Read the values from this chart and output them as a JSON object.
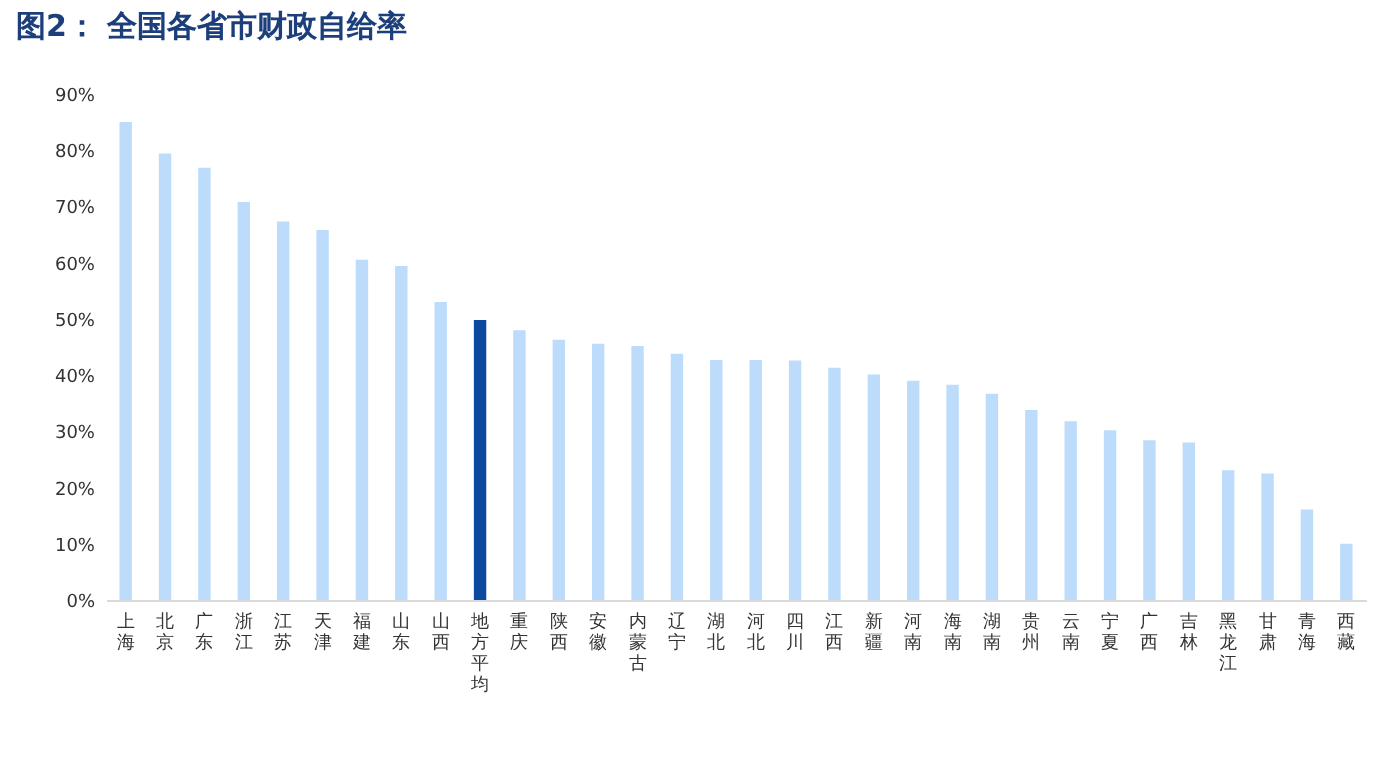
{
  "chart_data": {
    "type": "bar",
    "title": "图2：  全国各省市财政自给率",
    "categories": [
      "上海",
      "北京",
      "广东",
      "浙江",
      "江苏",
      "天津",
      "福建",
      "山东",
      "山西",
      "地方平均",
      "重庆",
      "陕西",
      "安徽",
      "内蒙古",
      "辽宁",
      "湖北",
      "河北",
      "四川",
      "江西",
      "新疆",
      "河南",
      "海南",
      "湖南",
      "贵州",
      "云南",
      "宁夏",
      "广西",
      "吉林",
      "黑龙江",
      "甘肃",
      "青海",
      "西藏"
    ],
    "values": [
      85.0,
      79.4,
      76.9,
      70.8,
      67.3,
      65.8,
      60.5,
      59.4,
      53.0,
      49.8,
      48.0,
      46.3,
      45.6,
      45.2,
      43.8,
      42.7,
      42.7,
      42.6,
      41.3,
      40.1,
      39.0,
      38.3,
      36.7,
      33.8,
      31.8,
      30.2,
      28.4,
      28.0,
      23.1,
      22.5,
      16.1,
      10.0
    ],
    "colors": [
      "#bddcfb",
      "#bddcfb",
      "#bddcfb",
      "#bddcfb",
      "#bddcfb",
      "#bddcfb",
      "#bddcfb",
      "#bddcfb",
      "#bddcfb",
      "#0b4a9e",
      "#bddcfb",
      "#bddcfb",
      "#bddcfb",
      "#bddcfb",
      "#bddcfb",
      "#bddcfb",
      "#bddcfb",
      "#bddcfb",
      "#bddcfb",
      "#bddcfb",
      "#bddcfb",
      "#bddcfb",
      "#bddcfb",
      "#bddcfb",
      "#bddcfb",
      "#bddcfb",
      "#bddcfb",
      "#bddcfb",
      "#bddcfb",
      "#bddcfb",
      "#bddcfb",
      "#bddcfb"
    ],
    "ylim": [
      0,
      90
    ],
    "yticks": [
      {
        "value": 0,
        "label": "0%"
      },
      {
        "value": 10,
        "label": "10%"
      },
      {
        "value": 20,
        "label": "20%"
      },
      {
        "value": 30,
        "label": "30%"
      },
      {
        "value": 40,
        "label": "40%"
      },
      {
        "value": 50,
        "label": "50%"
      },
      {
        "value": 60,
        "label": "60%"
      },
      {
        "value": 70,
        "label": "70%"
      },
      {
        "value": 80,
        "label": "80%"
      },
      {
        "value": 90,
        "label": "90%"
      }
    ],
    "grid": false
  }
}
